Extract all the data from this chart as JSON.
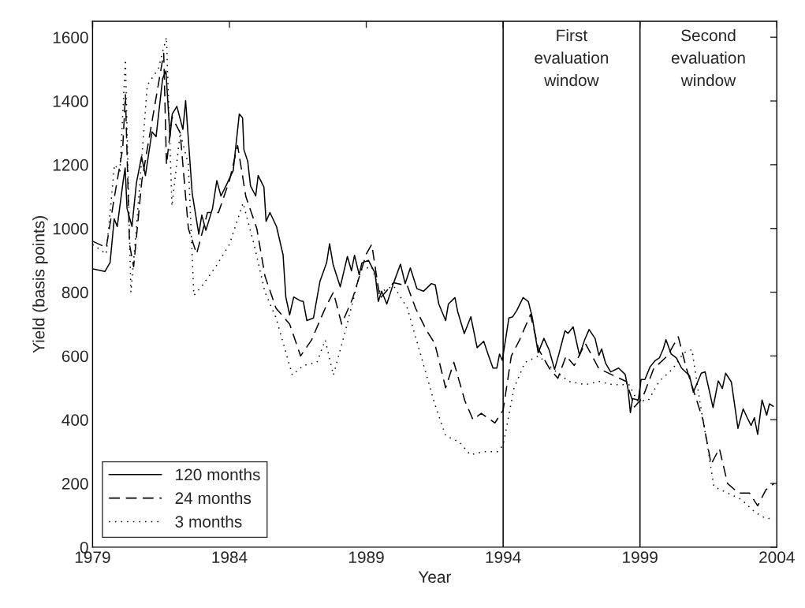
{
  "chart_data": {
    "type": "line",
    "xlabel": "Year",
    "ylabel": "Yield (basis points)",
    "xlim": [
      1979,
      2004
    ],
    "xticks": [
      1979,
      1984,
      1989,
      1994,
      1999,
      2004
    ],
    "ylim": [
      0,
      1650
    ],
    "yticks": [
      0,
      200,
      400,
      600,
      800,
      1000,
      1200,
      1400,
      1600
    ],
    "grid": false,
    "legend": "bottom left",
    "marker": "none",
    "ref_lines": [
      {
        "axis": "x",
        "value": 1994,
        "label": "First\nevaluation\nwindow",
        "color": "#000000"
      },
      {
        "axis": "x",
        "value": 1999,
        "label": "Second\nevaluation\nwindow",
        "color": "#000000"
      }
    ],
    "series": [
      {
        "name": "120 months",
        "color": "#000000",
        "line_style": "solid",
        "x": [
          1979.02,
          1979.45,
          1979.64,
          1979.79,
          1979.9,
          1980.12,
          1980.19,
          1980.26,
          1980.44,
          1980.6,
          1980.79,
          1980.93,
          1981.17,
          1981.32,
          1981.56,
          1981.68,
          1981.83,
          1981.91,
          1982.08,
          1982.3,
          1982.4,
          1982.64,
          1982.88,
          1982.99,
          1983.14,
          1983.38,
          1983.54,
          1983.69,
          1983.9,
          1984.14,
          1984.36,
          1984.48,
          1984.53,
          1984.67,
          1984.77,
          1984.96,
          1985.05,
          1985.26,
          1985.34,
          1985.48,
          1985.72,
          1985.96,
          1986.06,
          1986.2,
          1986.35,
          1986.59,
          1986.7,
          1986.83,
          1987.07,
          1987.31,
          1987.55,
          1987.66,
          1987.79,
          1988.05,
          1988.31,
          1988.46,
          1988.57,
          1988.74,
          1988.84,
          1989.08,
          1989.32,
          1989.44,
          1989.56,
          1989.75,
          1989.99,
          1990.25,
          1990.42,
          1990.61,
          1990.85,
          1991.09,
          1991.38,
          1991.52,
          1991.65,
          1991.9,
          1992.0,
          1992.24,
          1992.34,
          1992.58,
          1992.82,
          1993.05,
          1993.29,
          1993.48,
          1993.63,
          1993.77,
          1993.87,
          1993.97,
          1994.21,
          1994.35,
          1994.5,
          1994.73,
          1994.92,
          1995.06,
          1995.28,
          1995.49,
          1995.68,
          1995.88,
          1996.05,
          1996.26,
          1996.37,
          1996.56,
          1996.79,
          1996.98,
          1997.14,
          1997.36,
          1997.5,
          1997.6,
          1997.74,
          1997.93,
          1998.22,
          1998.46,
          1998.56,
          1998.65,
          1998.73,
          1998.94,
          1999.04,
          1999.18,
          1999.37,
          1999.56,
          1999.71,
          1999.85,
          1999.95,
          2000.14,
          2000.33,
          2000.52,
          2000.81,
          2000.95,
          2001.24,
          2001.38,
          2001.67,
          2001.86,
          2002.01,
          2002.13,
          2002.34,
          2002.58,
          2002.77,
          2002.92,
          2003.06,
          2003.18,
          2003.3,
          2003.46,
          2003.63,
          2003.73,
          2003.87
        ],
        "values": [
          873,
          865,
          893,
          1030,
          1006,
          1150,
          1190,
          1062,
          1006,
          1142,
          1226,
          1166,
          1303,
          1288,
          1471,
          1494,
          1287,
          1359,
          1383,
          1311,
          1401,
          1110,
          982,
          1042,
          994,
          1062,
          1150,
          1102,
          1138,
          1182,
          1359,
          1347,
          1247,
          1210,
          1134,
          1102,
          1166,
          1130,
          1022,
          1050,
          1006,
          917,
          785,
          729,
          785,
          773,
          771,
          711,
          719,
          835,
          892,
          952,
          886,
          817,
          912,
          867,
          916,
          855,
          892,
          900,
          860,
          771,
          803,
          763,
          827,
          888,
          827,
          876,
          811,
          803,
          827,
          823,
          763,
          711,
          763,
          783,
          739,
          670,
          723,
          626,
          646,
          598,
          562,
          562,
          606,
          586,
          719,
          723,
          743,
          783,
          771,
          723,
          610,
          655,
          619,
          558,
          610,
          679,
          671,
          691,
          602,
          651,
          683,
          655,
          602,
          622,
          578,
          550,
          562,
          542,
          498,
          422,
          466,
          462,
          526,
          526,
          566,
          586,
          594,
          622,
          651,
          606,
          594,
          562,
          538,
          486,
          546,
          550,
          438,
          522,
          498,
          546,
          518,
          373,
          434,
          406,
          382,
          406,
          354,
          462,
          414,
          450,
          442
        ]
      },
      {
        "name": "24 months",
        "color": "#000000",
        "line_style": "dashed",
        "x": [
          1979.0,
          1979.5,
          1979.8,
          1980.1,
          1980.2,
          1980.35,
          1980.5,
          1980.8,
          1981.2,
          1981.6,
          1981.7,
          1981.9,
          1982.2,
          1982.5,
          1982.8,
          1983.2,
          1983.6,
          1984.0,
          1984.3,
          1984.6,
          1985.0,
          1985.3,
          1985.7,
          1986.2,
          1986.6,
          1987.0,
          1987.5,
          1987.8,
          1988.1,
          1988.5,
          1989.0,
          1989.2,
          1989.5,
          1990.0,
          1990.5,
          1990.8,
          1991.2,
          1991.5,
          1991.9,
          1992.2,
          1992.6,
          1992.9,
          1993.2,
          1993.7,
          1994.0,
          1994.3,
          1994.6,
          1995.0,
          1995.3,
          1995.7,
          1996.0,
          1996.3,
          1996.6,
          1997.0,
          1997.5,
          1998.0,
          1998.5,
          1998.8,
          1999.1,
          1999.5,
          2000.0,
          2000.4,
          2000.7,
          2001.0,
          2001.3,
          2001.6,
          2001.9,
          2002.2,
          2002.6,
          2003.0,
          2003.3,
          2003.6,
          2003.9
        ],
        "values": [
          960,
          940,
          1100,
          1250,
          1420,
          950,
          880,
          1150,
          1350,
          1550,
          1200,
          1350,
          1300,
          1000,
          920,
          1050,
          1050,
          1150,
          1260,
          1100,
          1000,
          850,
          750,
          700,
          600,
          650,
          750,
          800,
          700,
          780,
          920,
          950,
          780,
          830,
          820,
          750,
          680,
          640,
          500,
          580,
          460,
          400,
          420,
          390,
          430,
          600,
          650,
          730,
          620,
          560,
          530,
          600,
          570,
          640,
          560,
          540,
          520,
          440,
          470,
          560,
          600,
          660,
          560,
          480,
          400,
          260,
          310,
          200,
          170,
          170,
          130,
          180,
          200
        ]
      },
      {
        "name": "3 months",
        "color": "#000000",
        "line_style": "dotted",
        "x": [
          1979.0,
          1979.5,
          1979.8,
          1980.0,
          1980.2,
          1980.4,
          1980.6,
          1981.0,
          1981.4,
          1981.7,
          1981.9,
          1982.2,
          1982.5,
          1982.7,
          1983.0,
          1983.5,
          1984.0,
          1984.5,
          1984.9,
          1985.3,
          1985.7,
          1986.3,
          1986.7,
          1987.2,
          1987.5,
          1987.8,
          1988.3,
          1988.8,
          1989.2,
          1989.5,
          1990.0,
          1990.5,
          1991.0,
          1991.5,
          1991.9,
          1992.4,
          1992.8,
          1993.3,
          1993.8,
          1994.0,
          1994.4,
          1994.8,
          1995.3,
          1995.8,
          1996.4,
          1997.0,
          1997.5,
          1998.0,
          1998.6,
          1998.9,
          1999.3,
          1999.7,
          2000.2,
          2000.6,
          2000.9,
          2001.2,
          2001.5,
          2001.7,
          2002.2,
          2002.7,
          2003.2,
          2003.6,
          2003.9
        ],
        "values": [
          950,
          920,
          1200,
          1180,
          1530,
          800,
          1000,
          1450,
          1500,
          1600,
          1070,
          1300,
          1200,
          790,
          820,
          880,
          950,
          1080,
          950,
          800,
          720,
          540,
          570,
          580,
          650,
          540,
          700,
          870,
          880,
          800,
          820,
          750,
          600,
          450,
          350,
          330,
          290,
          300,
          300,
          320,
          500,
          580,
          600,
          560,
          520,
          510,
          520,
          510,
          510,
          460,
          460,
          520,
          560,
          610,
          620,
          450,
          300,
          190,
          170,
          150,
          110,
          90,
          90
        ]
      }
    ]
  }
}
